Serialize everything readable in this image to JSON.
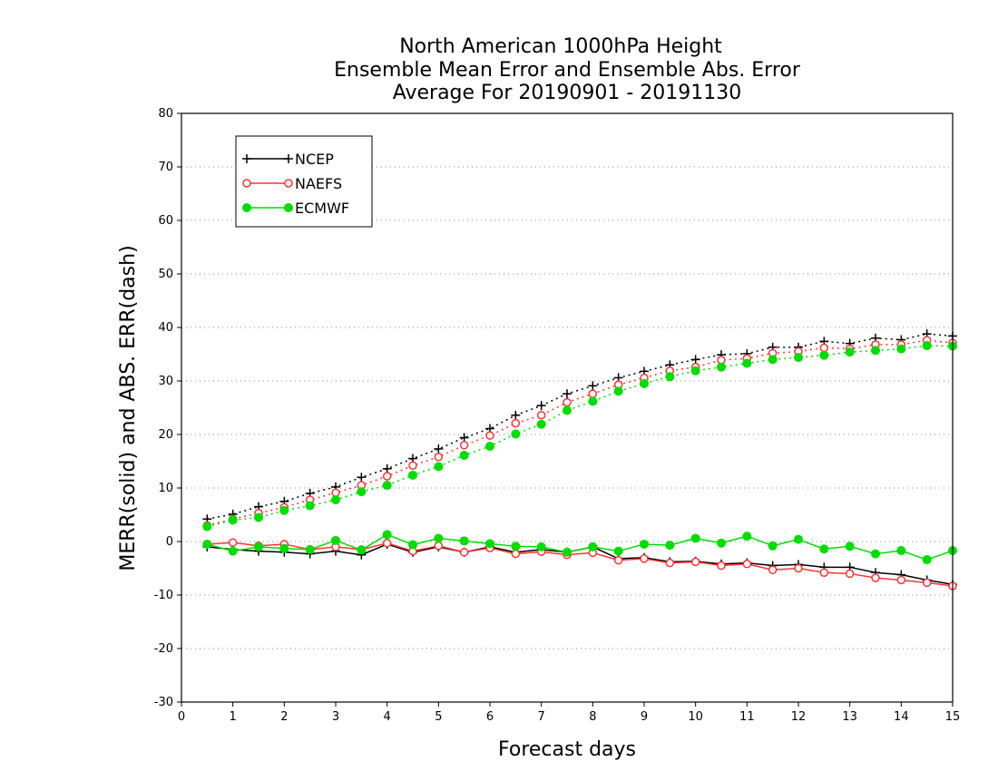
{
  "chart_data": {
    "type": "line",
    "title": [
      "North American 1000hPa Height",
      "Ensemble Mean Error and Ensemble Abs. Error",
      "Average For 20190901 - 20191130"
    ],
    "xlabel": "Forecast days",
    "ylabel": "MERR(solid) and ABS. ERR(dash)",
    "xlim": [
      0,
      15
    ],
    "ylim": [
      -30,
      80
    ],
    "xticks": [
      0,
      1,
      2,
      3,
      4,
      5,
      6,
      7,
      8,
      9,
      10,
      11,
      12,
      13,
      14,
      15
    ],
    "yticks": [
      -30,
      -20,
      -10,
      0,
      10,
      20,
      30,
      40,
      50,
      60,
      70,
      80
    ],
    "grid": "horizontal dotted",
    "legend_position": "top-left",
    "x": [
      0.5,
      1,
      1.5,
      2,
      2.5,
      3,
      3.5,
      4,
      4.5,
      5,
      5.5,
      6,
      6.5,
      7,
      7.5,
      8,
      8.5,
      9,
      9.5,
      10,
      10.5,
      11,
      11.5,
      12,
      12.5,
      13,
      13.5,
      14,
      14.5,
      15
    ],
    "series": [
      {
        "name": "NCEP",
        "color": "#000000",
        "marker": "plus",
        "merr": [
          -1.0,
          -1.5,
          -1.8,
          -2.0,
          -2.3,
          -1.8,
          -2.5,
          -0.5,
          -2.0,
          -1.0,
          -2.0,
          -1.0,
          -2.0,
          -1.5,
          -2.0,
          -1.0,
          -3.2,
          -3.0,
          -3.8,
          -3.7,
          -4.2,
          -4.0,
          -4.5,
          -4.3,
          -4.8,
          -4.8,
          -5.8,
          -6.2,
          -7.2,
          -8.0
        ],
        "abs_err": [
          4.2,
          5.1,
          6.5,
          7.5,
          9.0,
          10.2,
          12.0,
          13.6,
          15.5,
          17.3,
          19.4,
          21.1,
          23.6,
          25.4,
          27.6,
          29.1,
          30.6,
          31.8,
          33.0,
          34.0,
          34.9,
          35.1,
          36.3,
          36.3,
          37.4,
          37.0,
          38.0,
          37.7,
          38.8,
          38.4
        ]
      },
      {
        "name": "NAEFS",
        "color": "#ff3333",
        "marker": "circle",
        "merr": [
          -0.5,
          -0.2,
          -0.8,
          -0.5,
          -1.5,
          -1.0,
          -1.5,
          -0.3,
          -1.8,
          -0.8,
          -2.0,
          -1.2,
          -2.3,
          -1.9,
          -2.5,
          -2.1,
          -3.5,
          -3.2,
          -4.0,
          -3.8,
          -4.5,
          -4.2,
          -5.3,
          -5.0,
          -5.8,
          -6.0,
          -6.8,
          -7.2,
          -7.7,
          -8.3
        ],
        "abs_err": [
          3.0,
          4.2,
          5.3,
          6.4,
          7.8,
          9.1,
          10.5,
          12.2,
          14.2,
          15.8,
          18.0,
          19.8,
          22.1,
          23.6,
          26.0,
          27.6,
          29.3,
          30.6,
          31.9,
          32.6,
          33.9,
          34.2,
          35.2,
          35.5,
          36.2,
          36.0,
          36.8,
          36.8,
          37.6,
          37.1
        ]
      },
      {
        "name": "ECMWF",
        "color": "#00dd00",
        "marker": "dot",
        "merr": [
          -0.5,
          -1.8,
          -1.0,
          -1.3,
          -1.5,
          0.2,
          -1.6,
          1.3,
          -0.6,
          0.6,
          0.1,
          -0.4,
          -0.9,
          -1.0,
          -2.0,
          -1.0,
          -1.8,
          -0.5,
          -0.7,
          0.6,
          -0.3,
          1.0,
          -0.8,
          0.4,
          -1.4,
          -0.9,
          -2.3,
          -1.7,
          -3.4,
          -1.7
        ],
        "abs_err": [
          2.8,
          4.0,
          4.5,
          5.8,
          6.7,
          7.8,
          9.3,
          10.5,
          12.4,
          14.0,
          16.1,
          17.8,
          20.1,
          21.9,
          24.5,
          26.2,
          28.1,
          29.5,
          30.8,
          31.9,
          32.6,
          33.3,
          34.0,
          34.4,
          34.8,
          35.4,
          35.7,
          36.0,
          36.6,
          36.5
        ]
      }
    ]
  }
}
